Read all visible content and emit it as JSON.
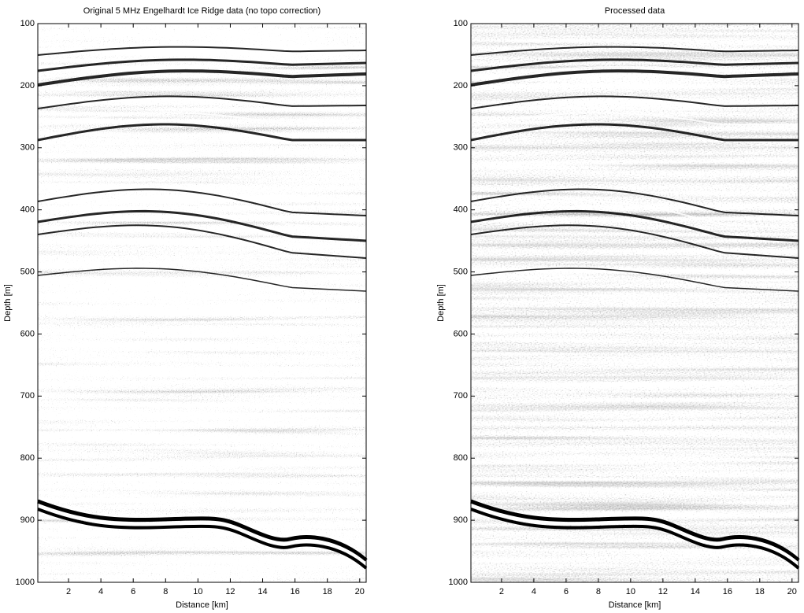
{
  "chart_data": [
    {
      "type": "image",
      "title": "Original 5 MHz Engelhardt Ice Ridge data (no topo correction)",
      "xlabel": "Distance [km]",
      "ylabel": "Depth [m]",
      "xlim": [
        0.1,
        20.4
      ],
      "xticks": [
        2,
        4,
        6,
        8,
        10,
        12,
        14,
        16,
        18,
        20
      ],
      "ylim": [
        100,
        1000
      ],
      "yticks": [
        100,
        200,
        300,
        400,
        500,
        600,
        700,
        800,
        900,
        1000
      ],
      "y_reversed": true
    },
    {
      "type": "image",
      "title": "Processed data",
      "xlabel": "Distance [km]",
      "ylabel": "Depth [m]",
      "xlim": [
        0.1,
        20.4
      ],
      "xticks": [
        2,
        4,
        6,
        8,
        10,
        12,
        14,
        16,
        18,
        20
      ],
      "ylim": [
        100,
        1000
      ],
      "yticks": [
        100,
        200,
        300,
        400,
        500,
        600,
        700,
        800,
        900,
        1000
      ],
      "y_reversed": true
    }
  ]
}
